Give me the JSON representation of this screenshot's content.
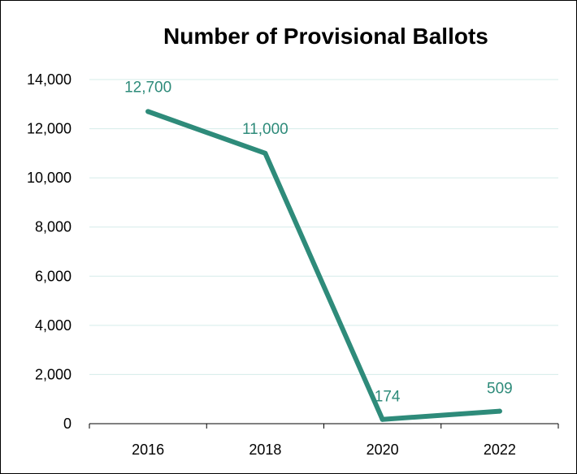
{
  "chart_data": {
    "type": "line",
    "title": "Number of Provisional Ballots",
    "xlabel": "",
    "ylabel": "",
    "categories": [
      "2016",
      "2018",
      "2020",
      "2022"
    ],
    "series": [
      {
        "values": [
          12700,
          11000,
          174,
          509
        ]
      }
    ],
    "data_labels": [
      "12,700",
      "11,000",
      "174",
      "509"
    ],
    "y_ticks": [
      "0",
      "2,000",
      "4,000",
      "6,000",
      "8,000",
      "10,000",
      "12,000",
      "14,000"
    ],
    "ylim": [
      0,
      14000
    ],
    "grid": true,
    "legend": "none",
    "colors": {
      "line": "#2e8b7a",
      "grid": "#d5ecea",
      "axis": "#000000",
      "label": "#2e8b7a"
    }
  }
}
